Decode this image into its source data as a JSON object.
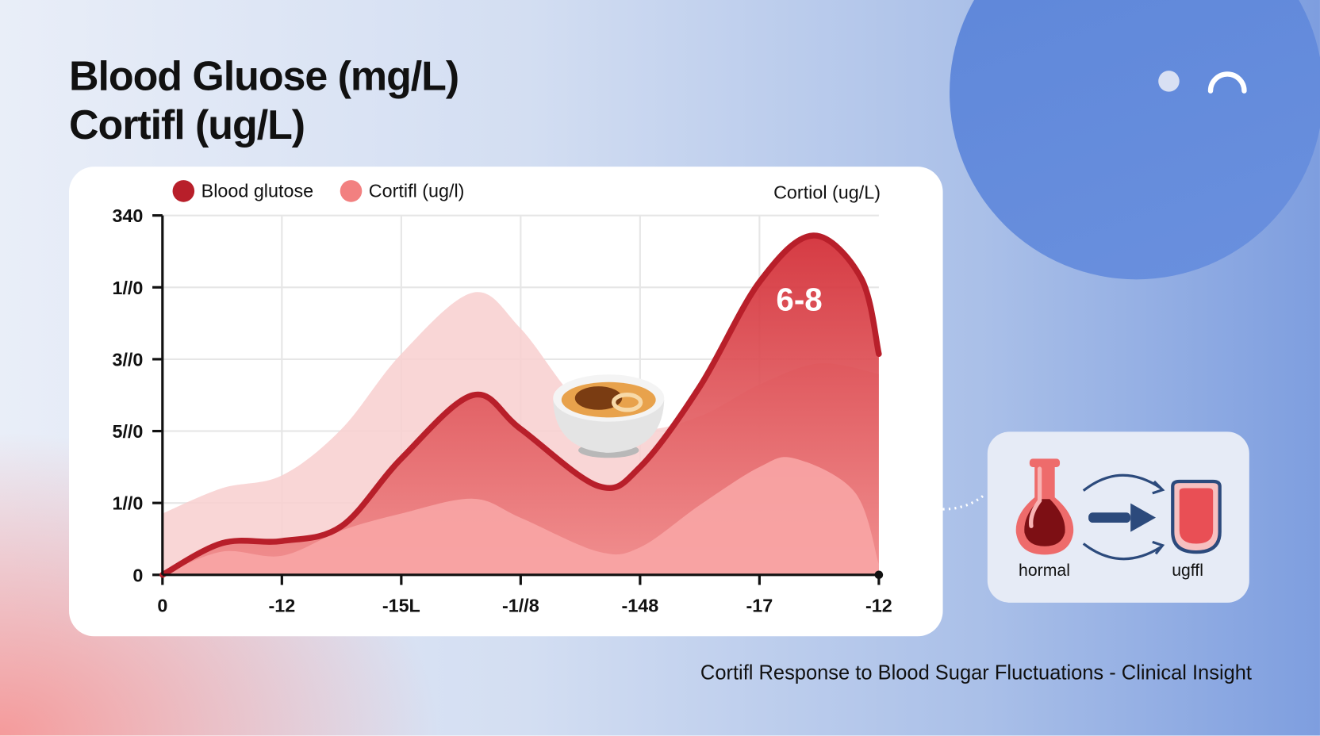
{
  "title": {
    "line1": "Blood Gluose (mg/L)",
    "line2": "Cortifl (ug/L)"
  },
  "caption": "Cortifl Response to Blood Sugar Fluctuations - Clinical Insight",
  "side_panel": {
    "left_label": "hormal",
    "right_label": "ugffl",
    "icons": [
      "blood-flask-icon",
      "arrow-right-icon",
      "blood-cup-icon"
    ]
  },
  "colors": {
    "glucose": "#b81f2a",
    "cortisol": "#f28080",
    "background_area": "#f8d0d0",
    "accent_blue": "#5d86d9"
  },
  "chart_data": {
    "type": "area",
    "legend": [
      {
        "label": "Blood glutose",
        "color": "#b81f2a"
      },
      {
        "label": "Cortifl (ug/l)",
        "color": "#f28080"
      }
    ],
    "legend_position": "top-left",
    "right_axis_label": "Cortiol (ug/L)",
    "x_tick_labels": [
      "0",
      "-12",
      "-15L",
      "-1//8",
      "-148",
      "-17",
      "-12"
    ],
    "y_tick_labels": [
      "0",
      "1//0",
      "5//0",
      "3//0",
      "1//0",
      "340"
    ],
    "ylim": [
      0,
      340
    ],
    "grid": true,
    "annotation": "6-8",
    "series": [
      {
        "name": "Blood glutose",
        "x": [
          0,
          0.5,
          1,
          1.5,
          2,
          2.6,
          3,
          3.65,
          4,
          4.5,
          5,
          5.45,
          5.85,
          6
        ],
        "y": [
          0,
          30,
          32,
          46,
          110,
          170,
          138,
          84,
          102,
          178,
          277,
          321,
          281,
          209
        ]
      },
      {
        "name": "Cortifl (ug/l)",
        "x": [
          0,
          0.5,
          1,
          1.5,
          2,
          2.6,
          3,
          3.65,
          4,
          4.5,
          5,
          5.3,
          5.8,
          6
        ],
        "y": [
          0,
          22,
          18,
          42,
          58,
          72,
          54,
          22,
          26,
          66,
          102,
          110,
          78,
          10
        ]
      }
    ],
    "background_band": {
      "x": [
        0,
        0.5,
        1,
        1.5,
        2,
        2.6,
        3,
        3.5,
        4,
        4.5,
        5,
        5.5,
        6
      ],
      "y": [
        58,
        82,
        94,
        138,
        209,
        267,
        233,
        162,
        138,
        150,
        180,
        200,
        190
      ]
    }
  }
}
